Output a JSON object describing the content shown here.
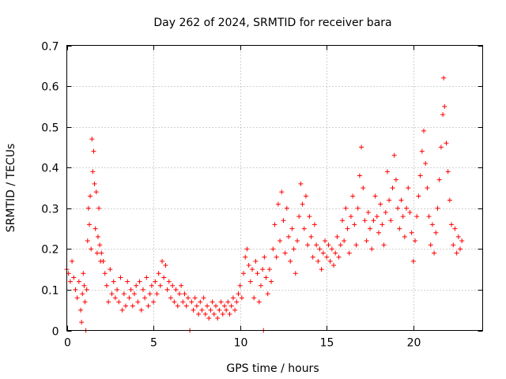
{
  "chart_data": {
    "type": "scatter",
    "title": "Day 262 of 2024, SRMTID for receiver bara",
    "xlabel": "GPS time / hours",
    "ylabel": "SRMTID / TECUs",
    "xlim": [
      0,
      24
    ],
    "ylim": [
      0,
      0.7
    ],
    "xticks": [
      0,
      5,
      10,
      15,
      20
    ],
    "xtick_labels": [
      "0",
      "5",
      "10",
      "15",
      "20"
    ],
    "yticks": [
      0,
      0.1,
      0.2,
      0.3,
      0.4,
      0.5,
      0.6,
      0.7
    ],
    "ytick_labels": [
      "0",
      "0.1",
      "0.2",
      "0.3",
      "0.4",
      "0.5",
      "0.6",
      "0.7"
    ],
    "grid": true,
    "marker": "+",
    "color": "#ff0000",
    "series": [
      {
        "name": "SRMTID",
        "points": [
          [
            0.0,
            0.15
          ],
          [
            0.1,
            0.14
          ],
          [
            0.2,
            0.12
          ],
          [
            0.3,
            0.17
          ],
          [
            0.4,
            0.13
          ],
          [
            0.5,
            0.1
          ],
          [
            0.6,
            0.08
          ],
          [
            0.7,
            0.12
          ],
          [
            0.8,
            0.05
          ],
          [
            0.85,
            0.02
          ],
          [
            0.9,
            0.09
          ],
          [
            0.95,
            0.14
          ],
          [
            1.0,
            0.11
          ],
          [
            1.05,
            0.07
          ],
          [
            1.1,
            0.0
          ],
          [
            1.15,
            0.1
          ],
          [
            1.2,
            0.22
          ],
          [
            1.25,
            0.3
          ],
          [
            1.3,
            0.26
          ],
          [
            1.35,
            0.33
          ],
          [
            1.4,
            0.2
          ],
          [
            1.45,
            0.47
          ],
          [
            1.5,
            0.39
          ],
          [
            1.55,
            0.44
          ],
          [
            1.6,
            0.36
          ],
          [
            1.65,
            0.25
          ],
          [
            1.7,
            0.34
          ],
          [
            1.75,
            0.19
          ],
          [
            1.8,
            0.23
          ],
          [
            1.85,
            0.3
          ],
          [
            1.9,
            0.21
          ],
          [
            1.95,
            0.17
          ],
          [
            2.0,
            0.19
          ],
          [
            2.1,
            0.17
          ],
          [
            2.2,
            0.14
          ],
          [
            2.3,
            0.11
          ],
          [
            2.4,
            0.07
          ],
          [
            2.5,
            0.15
          ],
          [
            2.6,
            0.09
          ],
          [
            2.7,
            0.12
          ],
          [
            2.8,
            0.08
          ],
          [
            2.9,
            0.1
          ],
          [
            3.0,
            0.07
          ],
          [
            3.1,
            0.13
          ],
          [
            3.2,
            0.05
          ],
          [
            3.3,
            0.09
          ],
          [
            3.4,
            0.06
          ],
          [
            3.5,
            0.12
          ],
          [
            3.6,
            0.08
          ],
          [
            3.7,
            0.1
          ],
          [
            3.8,
            0.06
          ],
          [
            3.9,
            0.09
          ],
          [
            4.0,
            0.11
          ],
          [
            4.1,
            0.07
          ],
          [
            4.2,
            0.12
          ],
          [
            4.3,
            0.05
          ],
          [
            4.4,
            0.1
          ],
          [
            4.5,
            0.08
          ],
          [
            4.6,
            0.13
          ],
          [
            4.7,
            0.06
          ],
          [
            4.8,
            0.09
          ],
          [
            4.9,
            0.11
          ],
          [
            5.0,
            0.07
          ],
          [
            5.1,
            0.12
          ],
          [
            5.2,
            0.09
          ],
          [
            5.3,
            0.14
          ],
          [
            5.4,
            0.11
          ],
          [
            5.5,
            0.17
          ],
          [
            5.6,
            0.13
          ],
          [
            5.7,
            0.16
          ],
          [
            5.8,
            0.1
          ],
          [
            5.9,
            0.12
          ],
          [
            6.0,
            0.08
          ],
          [
            6.1,
            0.11
          ],
          [
            6.2,
            0.07
          ],
          [
            6.3,
            0.1
          ],
          [
            6.4,
            0.06
          ],
          [
            6.5,
            0.09
          ],
          [
            6.6,
            0.11
          ],
          [
            6.7,
            0.07
          ],
          [
            6.8,
            0.09
          ],
          [
            6.9,
            0.06
          ],
          [
            7.0,
            0.08
          ],
          [
            7.1,
            0.0
          ],
          [
            7.2,
            0.07
          ],
          [
            7.3,
            0.05
          ],
          [
            7.4,
            0.08
          ],
          [
            7.5,
            0.06
          ],
          [
            7.6,
            0.04
          ],
          [
            7.7,
            0.07
          ],
          [
            7.8,
            0.05
          ],
          [
            7.9,
            0.08
          ],
          [
            8.0,
            0.04
          ],
          [
            8.1,
            0.06
          ],
          [
            8.2,
            0.03
          ],
          [
            8.3,
            0.05
          ],
          [
            8.4,
            0.07
          ],
          [
            8.5,
            0.04
          ],
          [
            8.6,
            0.06
          ],
          [
            8.7,
            0.03
          ],
          [
            8.8,
            0.05
          ],
          [
            8.9,
            0.07
          ],
          [
            9.0,
            0.04
          ],
          [
            9.1,
            0.06
          ],
          [
            9.2,
            0.05
          ],
          [
            9.3,
            0.07
          ],
          [
            9.4,
            0.04
          ],
          [
            9.5,
            0.06
          ],
          [
            9.6,
            0.08
          ],
          [
            9.7,
            0.05
          ],
          [
            9.8,
            0.07
          ],
          [
            9.9,
            0.09
          ],
          [
            10.0,
            0.11
          ],
          [
            10.1,
            0.08
          ],
          [
            10.2,
            0.14
          ],
          [
            10.3,
            0.18
          ],
          [
            10.4,
            0.2
          ],
          [
            10.5,
            0.16
          ],
          [
            10.6,
            0.12
          ],
          [
            10.7,
            0.15
          ],
          [
            10.8,
            0.08
          ],
          [
            10.9,
            0.17
          ],
          [
            11.0,
            0.14
          ],
          [
            11.1,
            0.07
          ],
          [
            11.2,
            0.11
          ],
          [
            11.3,
            0.15
          ],
          [
            11.35,
            0.0
          ],
          [
            11.4,
            0.18
          ],
          [
            11.5,
            0.13
          ],
          [
            11.6,
            0.09
          ],
          [
            11.7,
            0.15
          ],
          [
            11.8,
            0.12
          ],
          [
            11.9,
            0.2
          ],
          [
            12.0,
            0.26
          ],
          [
            12.1,
            0.18
          ],
          [
            12.2,
            0.31
          ],
          [
            12.3,
            0.22
          ],
          [
            12.4,
            0.34
          ],
          [
            12.5,
            0.27
          ],
          [
            12.6,
            0.19
          ],
          [
            12.7,
            0.3
          ],
          [
            12.8,
            0.23
          ],
          [
            12.9,
            0.17
          ],
          [
            13.0,
            0.25
          ],
          [
            13.1,
            0.2
          ],
          [
            13.2,
            0.14
          ],
          [
            13.3,
            0.22
          ],
          [
            13.4,
            0.28
          ],
          [
            13.5,
            0.36
          ],
          [
            13.6,
            0.31
          ],
          [
            13.7,
            0.25
          ],
          [
            13.8,
            0.33
          ],
          [
            13.9,
            0.21
          ],
          [
            14.0,
            0.28
          ],
          [
            14.1,
            0.23
          ],
          [
            14.2,
            0.18
          ],
          [
            14.3,
            0.26
          ],
          [
            14.4,
            0.21
          ],
          [
            14.5,
            0.17
          ],
          [
            14.6,
            0.2
          ],
          [
            14.7,
            0.15
          ],
          [
            14.8,
            0.19
          ],
          [
            14.9,
            0.22
          ],
          [
            15.0,
            0.18
          ],
          [
            15.1,
            0.21
          ],
          [
            15.2,
            0.17
          ],
          [
            15.3,
            0.2
          ],
          [
            15.4,
            0.16
          ],
          [
            15.5,
            0.19
          ],
          [
            15.6,
            0.23
          ],
          [
            15.7,
            0.18
          ],
          [
            15.8,
            0.21
          ],
          [
            15.9,
            0.27
          ],
          [
            16.0,
            0.22
          ],
          [
            16.1,
            0.3
          ],
          [
            16.2,
            0.25
          ],
          [
            16.3,
            0.19
          ],
          [
            16.4,
            0.28
          ],
          [
            16.5,
            0.33
          ],
          [
            16.6,
            0.26
          ],
          [
            16.7,
            0.21
          ],
          [
            16.8,
            0.3
          ],
          [
            16.9,
            0.38
          ],
          [
            17.0,
            0.45
          ],
          [
            17.1,
            0.35
          ],
          [
            17.2,
            0.27
          ],
          [
            17.3,
            0.22
          ],
          [
            17.4,
            0.29
          ],
          [
            17.5,
            0.25
          ],
          [
            17.6,
            0.2
          ],
          [
            17.7,
            0.27
          ],
          [
            17.8,
            0.33
          ],
          [
            17.9,
            0.28
          ],
          [
            18.0,
            0.24
          ],
          [
            18.1,
            0.31
          ],
          [
            18.2,
            0.26
          ],
          [
            18.3,
            0.21
          ],
          [
            18.4,
            0.29
          ],
          [
            18.5,
            0.39
          ],
          [
            18.6,
            0.32
          ],
          [
            18.7,
            0.27
          ],
          [
            18.8,
            0.35
          ],
          [
            18.9,
            0.43
          ],
          [
            19.0,
            0.37
          ],
          [
            19.1,
            0.3
          ],
          [
            19.2,
            0.25
          ],
          [
            19.3,
            0.32
          ],
          [
            19.4,
            0.28
          ],
          [
            19.5,
            0.23
          ],
          [
            19.6,
            0.3
          ],
          [
            19.7,
            0.35
          ],
          [
            19.8,
            0.29
          ],
          [
            19.9,
            0.24
          ],
          [
            20.0,
            0.17
          ],
          [
            20.1,
            0.22
          ],
          [
            20.2,
            0.28
          ],
          [
            20.3,
            0.33
          ],
          [
            20.4,
            0.38
          ],
          [
            20.5,
            0.44
          ],
          [
            20.6,
            0.49
          ],
          [
            20.7,
            0.41
          ],
          [
            20.8,
            0.35
          ],
          [
            20.9,
            0.28
          ],
          [
            21.0,
            0.21
          ],
          [
            21.1,
            0.26
          ],
          [
            21.2,
            0.19
          ],
          [
            21.3,
            0.24
          ],
          [
            21.4,
            0.3
          ],
          [
            21.5,
            0.37
          ],
          [
            21.6,
            0.45
          ],
          [
            21.7,
            0.53
          ],
          [
            21.75,
            0.62
          ],
          [
            21.8,
            0.55
          ],
          [
            21.9,
            0.46
          ],
          [
            22.0,
            0.39
          ],
          [
            22.1,
            0.32
          ],
          [
            22.2,
            0.26
          ],
          [
            22.3,
            0.21
          ],
          [
            22.4,
            0.25
          ],
          [
            22.5,
            0.19
          ],
          [
            22.6,
            0.23
          ],
          [
            22.7,
            0.2
          ],
          [
            22.8,
            0.22
          ]
        ]
      }
    ]
  }
}
